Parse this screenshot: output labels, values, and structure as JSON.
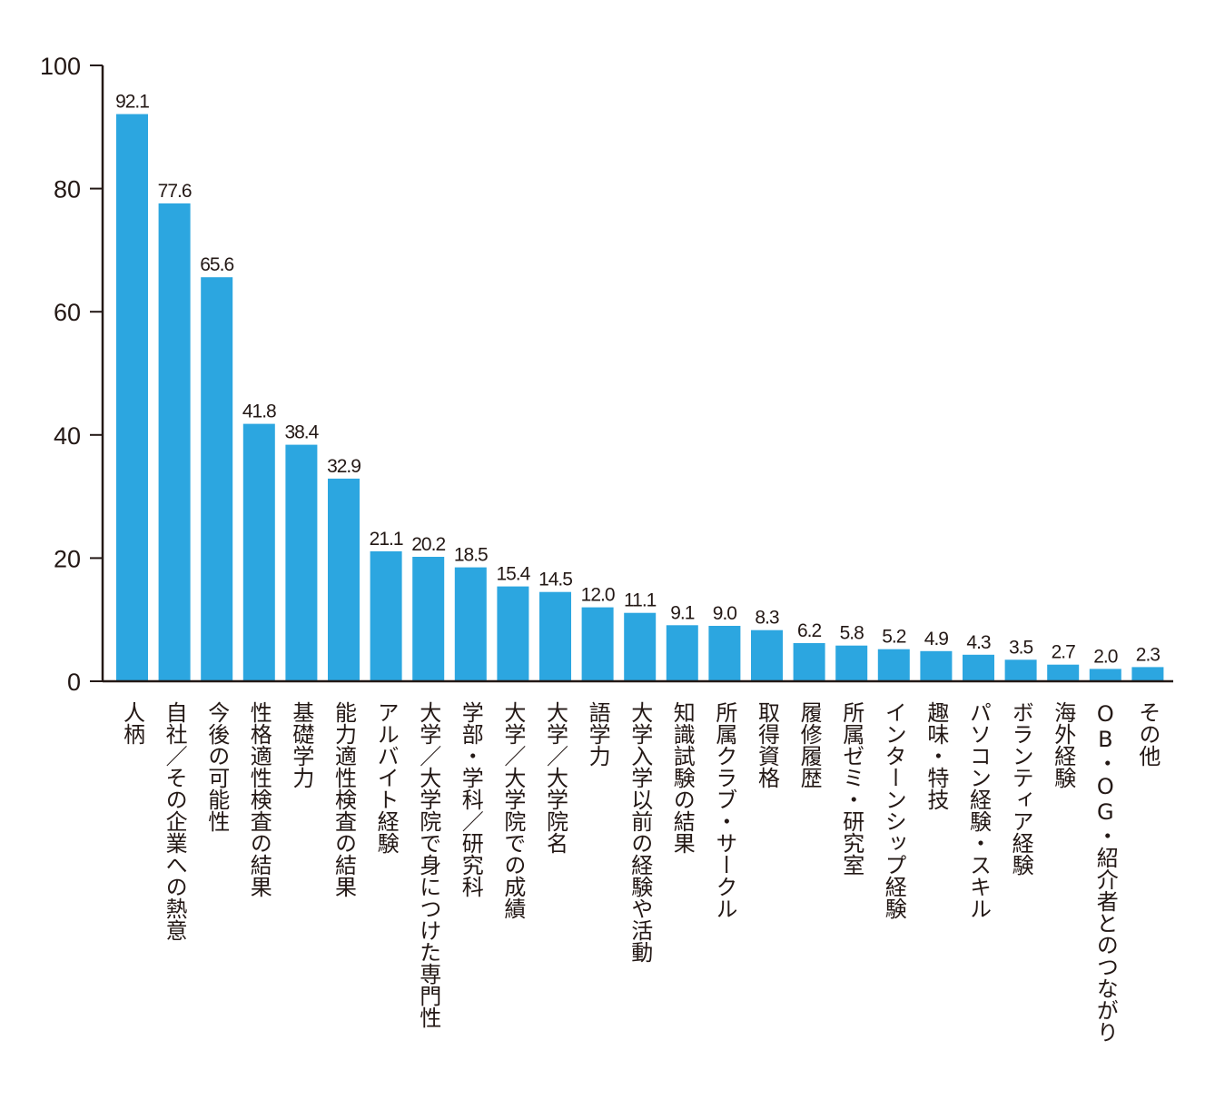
{
  "chart_data": {
    "type": "bar",
    "title": "",
    "xlabel": "",
    "ylabel": "",
    "ylim": [
      0,
      100
    ],
    "yticks": [
      0,
      20,
      40,
      60,
      80,
      100
    ],
    "bar_color": "#2ca6e0",
    "axis_color": "#231815",
    "value_labels": [
      "92.1",
      "77.6",
      "65.6",
      "41.8",
      "38.4",
      "32.9",
      "21.1",
      "20.2",
      "18.5",
      "15.4",
      "14.5",
      "12.0",
      "11.1",
      "9.1",
      "9.0",
      "8.3",
      "6.2",
      "5.8",
      "5.2",
      "4.9",
      "4.3",
      "3.5",
      "2.7",
      "2.0",
      "2.3"
    ],
    "categories": [
      "人柄",
      "自社／その企業への熱意",
      "今後の可能性",
      "性格適性検査の結果",
      "基礎学力",
      "能力適性検査の結果",
      "アルバイト経験",
      "大学／大学院で身につけた専門性",
      "学部・学科／研究科",
      "大学／大学院での成績",
      "大学／大学院名",
      "語学力",
      "大学入学以前の経験や活動",
      "知識試験の結果",
      "所属クラブ・サークル",
      "取得資格",
      "履修履歴",
      "所属ゼミ・研究室",
      "インターンシップ経験",
      "趣味・特技",
      "パソコン経験・スキル",
      "ボランティア経験",
      "海外経験",
      "OB・OG・紹介者とのつながり",
      "その他"
    ],
    "values": [
      92.1,
      77.6,
      65.6,
      41.8,
      38.4,
      32.9,
      21.1,
      20.2,
      18.5,
      15.4,
      14.5,
      12.0,
      11.1,
      9.1,
      9.0,
      8.3,
      6.2,
      5.8,
      5.2,
      4.9,
      4.3,
      3.5,
      2.7,
      2.0,
      2.3
    ]
  }
}
